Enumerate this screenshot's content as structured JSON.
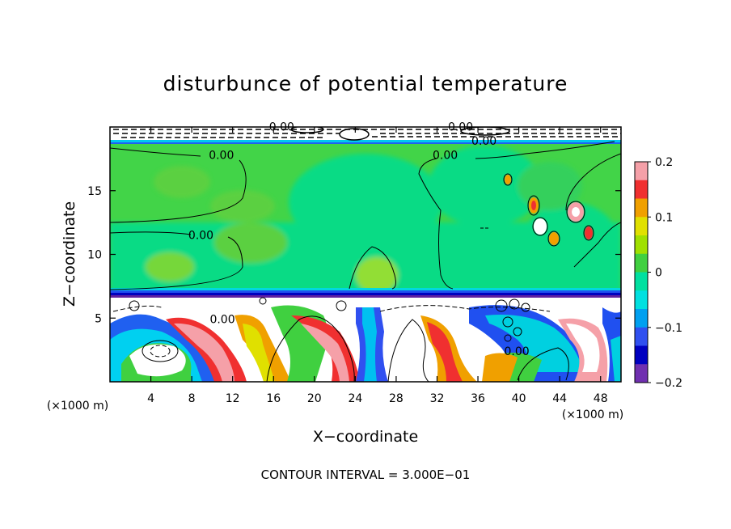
{
  "chart_data": {
    "type": "heatmap",
    "title": "disturbunce of potential temperature",
    "xlabel": "X−coordinate",
    "ylabel": "Z−coordinate",
    "x_unit": "(×1000 m)",
    "y_unit": "(×1000 m)",
    "xlim": [
      0,
      50
    ],
    "ylim": [
      0,
      20
    ],
    "x_ticks": [
      4,
      8,
      12,
      16,
      20,
      24,
      28,
      32,
      36,
      40,
      44,
      48
    ],
    "y_ticks": [
      5,
      10,
      15
    ],
    "colorbar": {
      "ticks": [
        0.2,
        0.1,
        0,
        -0.1,
        -0.2
      ],
      "tick_labels": [
        "0.2",
        "0.1",
        "0",
        "−0.1",
        "−0.2"
      ],
      "range": [
        -0.2,
        0.2
      ],
      "colors": [
        "#f5a0a8",
        "#f03030",
        "#f0a000",
        "#e0e000",
        "#a0e000",
        "#40d040",
        "#00e0a0",
        "#00e0e0",
        "#00a0f0",
        "#3050f0",
        "#0000c0",
        "#7030b0"
      ]
    },
    "contour_labels": [
      {
        "text": "0.00",
        "x": 16.8,
        "z": 19.7
      },
      {
        "text": "0.00",
        "x": 34.3,
        "z": 19.7
      },
      {
        "text": "0.00",
        "x": 36.6,
        "z": 18.6
      },
      {
        "text": "0.00",
        "x": 10.9,
        "z": 17.5
      },
      {
        "text": "0.00",
        "x": 32.8,
        "z": 17.5
      },
      {
        "text": "0.00",
        "x": 8.9,
        "z": 11.2
      },
      {
        "text": "0.00",
        "x": 11.0,
        "z": 4.6
      },
      {
        "text": "0.00",
        "x": 39.8,
        "z": 2.1
      }
    ],
    "footer": "CONTOUR INTERVAL = 3.000E−01"
  }
}
